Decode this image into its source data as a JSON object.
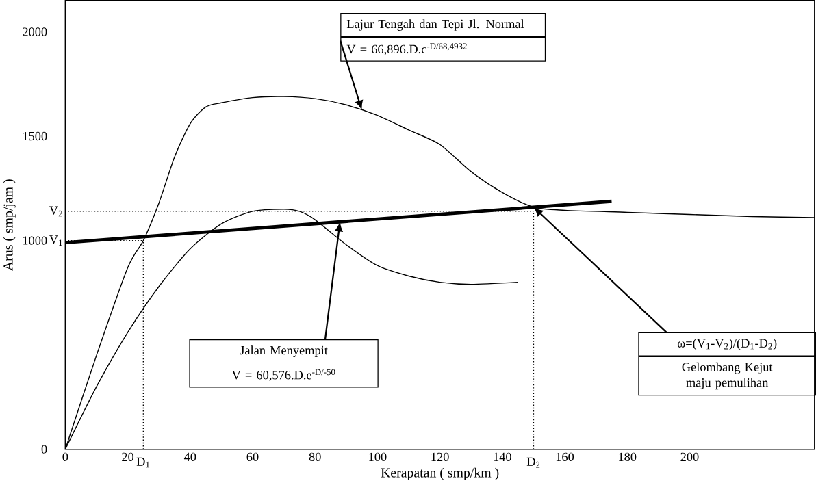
{
  "chart_data": {
    "type": "line",
    "xlabel": "Kerapatan ( smp/km )",
    "ylabel": "Arus ( smp/jam )",
    "xlim": [
      0,
      240
    ],
    "ylim": [
      0,
      2150
    ],
    "xticks": [
      0,
      20,
      40,
      60,
      80,
      100,
      120,
      140,
      160,
      180,
      200
    ],
    "yticks": [
      0,
      1000,
      1500,
      2000
    ],
    "grid": false,
    "legend": false,
    "marker": "none",
    "line_style": "solid",
    "series": [
      {
        "color": "#000000",
        "x": [
          0,
          10,
          20,
          25,
          30,
          35,
          40,
          45,
          50,
          60,
          70,
          80,
          90,
          100,
          110,
          120,
          130,
          140,
          150,
          160,
          180,
          200,
          220,
          240
        ],
        "values": [
          0,
          450,
          870,
          1000,
          1180,
          1400,
          1560,
          1640,
          1660,
          1685,
          1690,
          1680,
          1650,
          1600,
          1530,
          1460,
          1330,
          1230,
          1160,
          1145,
          1135,
          1125,
          1115,
          1110
        ]
      },
      {
        "color": "#000000",
        "x": [
          0,
          10,
          20,
          30,
          40,
          50,
          60,
          70,
          75,
          80,
          90,
          100,
          110,
          120,
          130,
          145
        ],
        "values": [
          0,
          300,
          560,
          780,
          960,
          1080,
          1140,
          1150,
          1140,
          1100,
          980,
          880,
          830,
          800,
          790,
          800
        ]
      },
      {
        "color": "#000000",
        "x": [
          0,
          175
        ],
        "values": [
          990,
          1188
        ]
      }
    ],
    "ref_lines": [
      {
        "axis": "y",
        "value": 1000,
        "label": "V$_{1}$",
        "line_style": "dotted"
      },
      {
        "axis": "x",
        "value": 25,
        "label": "D$_{1}$",
        "line_style": "dotted"
      },
      {
        "axis": "y",
        "value": 1140,
        "label": "V$_{2}$",
        "line_style": "dotted"
      },
      {
        "axis": "x",
        "value": 150,
        "label": "D$_{2}$",
        "line_style": "dotted"
      }
    ],
    "annotations": [
      "Lajur Tengah dan Tepi Jl. Normal",
      "V = 66,896.D.c$^{-D/68,4932}$",
      "Jalan Menyempit",
      "V = 60,576.D.e$^{-D/-50}$",
      "ω=(V$_{1}$-V$_{2}$)/(D$_{1}$-D$_{2}$)",
      "Gelombang Kejut maju pemulihan"
    ]
  }
}
